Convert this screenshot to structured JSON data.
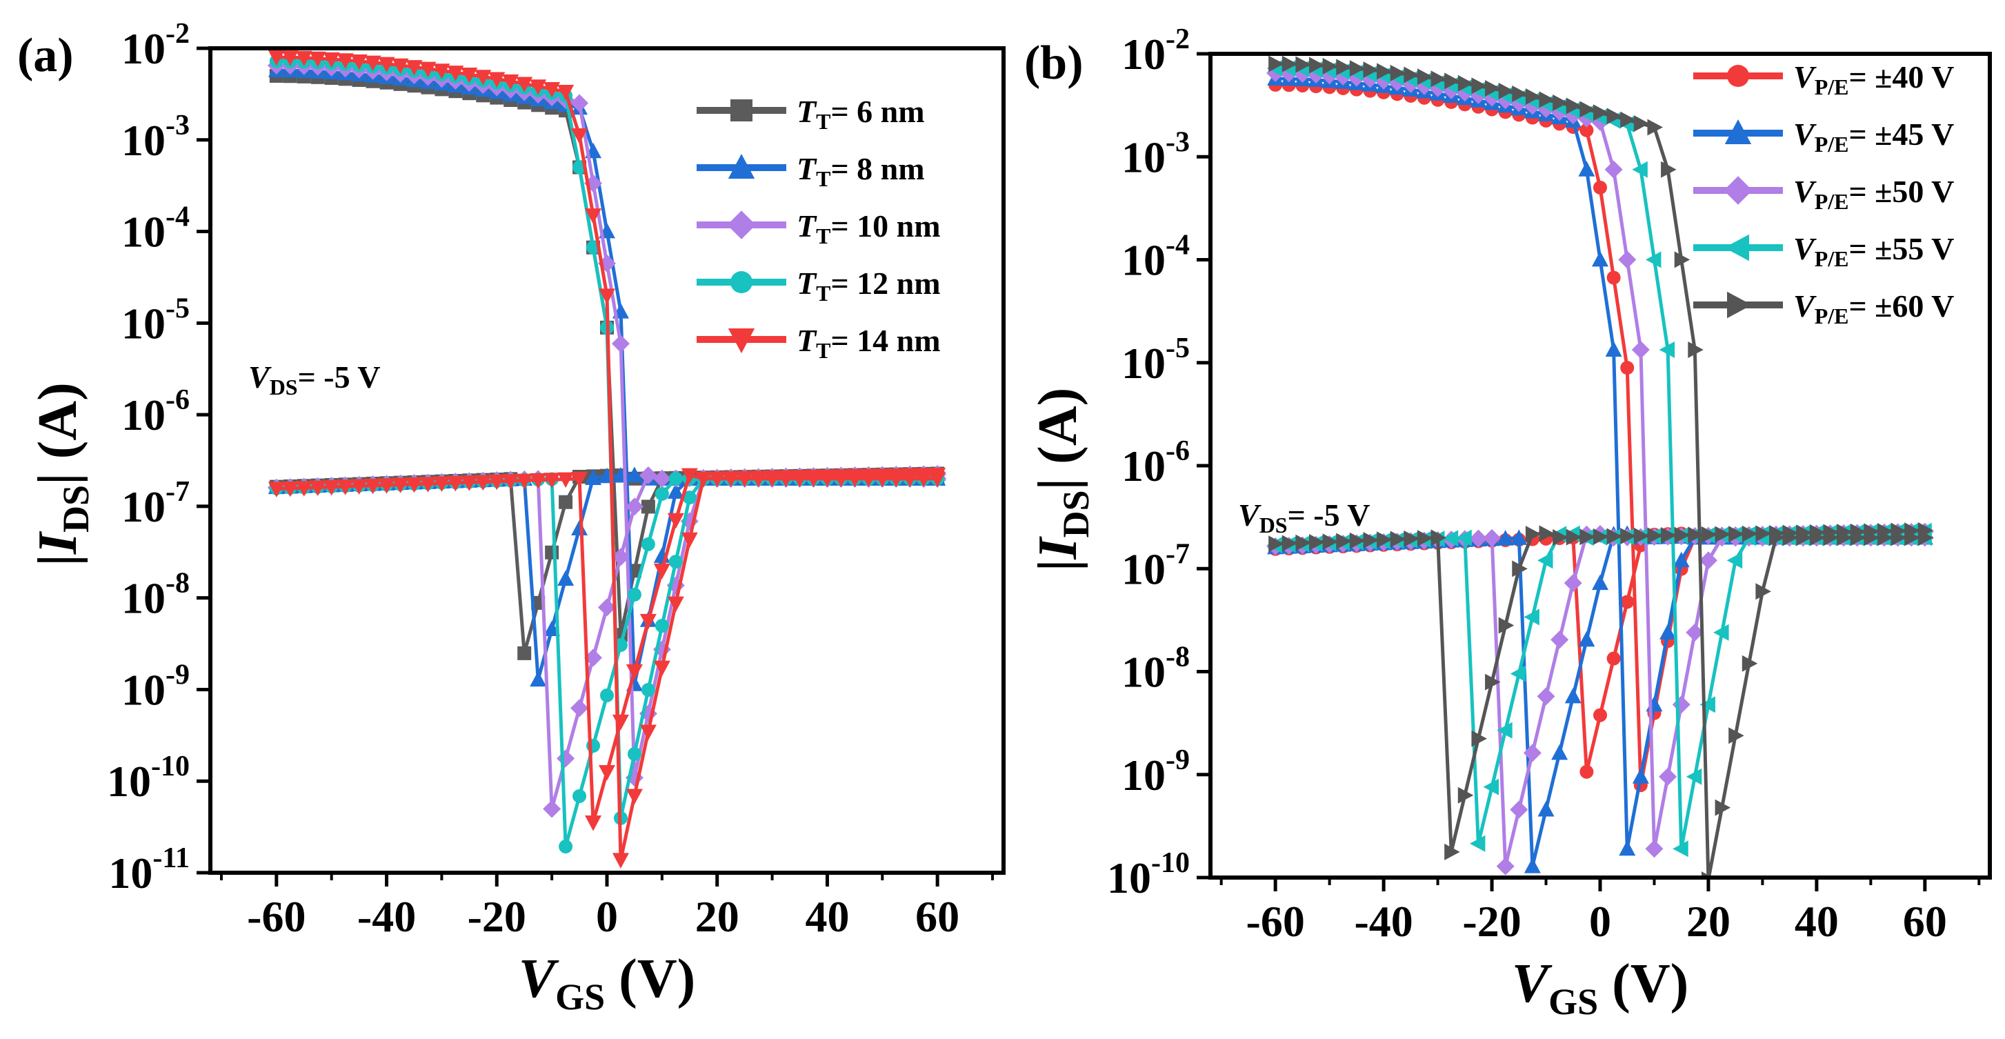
{
  "figure": {
    "colors": {
      "gray": "#5b5b5b",
      "blue": "#1f6fd6",
      "purple": "#b07ee6",
      "cyan": "#17c2c0",
      "red": "#f23a3a",
      "darkgray": "#555555"
    },
    "panels": [
      {
        "id": "a",
        "label": "(a)",
        "annotation": {
          "main": "V",
          "sub": "DS",
          "rest": "= -5 V"
        },
        "ylabel": {
          "pre": "|",
          "main": "I",
          "sub": "DS",
          "post": "| (A)"
        },
        "xlabel": {
          "main": "V",
          "sub": "GS",
          "post": " (V)"
        },
        "legend": [
          {
            "main": "T",
            "sub": "T",
            "rest": "= 6 nm"
          },
          {
            "main": "T",
            "sub": "T",
            "rest": "= 8 nm"
          },
          {
            "main": "T",
            "sub": "T",
            "rest": "= 10 nm"
          },
          {
            "main": "T",
            "sub": "T",
            "rest": "= 12 nm"
          },
          {
            "main": "T",
            "sub": "T",
            "rest": "= 14 nm"
          }
        ]
      },
      {
        "id": "b",
        "label": "(b)",
        "annotation": {
          "main": "V",
          "sub": "DS",
          "rest": "= -5 V"
        },
        "ylabel": {
          "pre": "|",
          "main": "I",
          "sub": "DS",
          "post": "| (A)"
        },
        "xlabel": {
          "main": "V",
          "sub": "GS",
          "post": " (V)"
        },
        "legend": [
          {
            "main": "V",
            "sub": "P/E",
            "rest": "= ±40 V"
          },
          {
            "main": "V",
            "sub": "P/E",
            "rest": "= ±45 V"
          },
          {
            "main": "V",
            "sub": "P/E",
            "rest": "= ±50 V"
          },
          {
            "main": "V",
            "sub": "P/E",
            "rest": "= ±55 V"
          },
          {
            "main": "V",
            "sub": "P/E",
            "rest": "= ±60 V"
          }
        ]
      }
    ]
  },
  "chart_data": [
    {
      "type": "line",
      "panel": "(a)",
      "xlabel": "VGS (V)",
      "ylabel": "|IDS| (A)",
      "yscale": "log",
      "xlim": [
        -72,
        72
      ],
      "ylim_exp": [
        -11,
        -2
      ],
      "xticks": [
        -60,
        -40,
        -20,
        0,
        20,
        40,
        60
      ],
      "yticks": [
        {
          "base": "10",
          "exp": "-11",
          "value": -11
        },
        {
          "base": "10",
          "exp": "-10",
          "value": -10
        },
        {
          "base": "10",
          "exp": "-9",
          "value": -9
        },
        {
          "base": "10",
          "exp": "-8",
          "value": -8
        },
        {
          "base": "10",
          "exp": "-7",
          "value": -7
        },
        {
          "base": "10",
          "exp": "-6",
          "value": -6
        },
        {
          "base": "10",
          "exp": "-5",
          "value": -5
        },
        {
          "base": "10",
          "exp": "-4",
          "value": -4
        },
        {
          "base": "10",
          "exp": "-3",
          "value": -3
        },
        {
          "base": "10",
          "exp": "-2",
          "value": -2
        }
      ],
      "series": [
        {
          "name": "TT= 6 nm",
          "color": "#5b5b5b",
          "marker": "square",
          "vth_forward": -16,
          "vth_reverse": -1,
          "min_current": 1.5e-09
        },
        {
          "name": "TT= 8 nm",
          "color": "#1f6fd6",
          "marker": "triangle-up",
          "vth_forward": -14,
          "vth_reverse": 2,
          "min_current": 6e-10
        },
        {
          "name": "TT= 10 nm",
          "color": "#b07ee6",
          "marker": "diamond",
          "vth_forward": -11,
          "vth_reverse": 1,
          "min_current": 3e-11
        },
        {
          "name": "TT= 12 nm",
          "color": "#17c2c0",
          "marker": "circle",
          "vth_forward": -8,
          "vth_reverse": -1,
          "min_current": 1.5e-11
        },
        {
          "name": "TT= 14 nm",
          "color": "#f23a3a",
          "marker": "triangle-down",
          "vth_forward": -5,
          "vth_reverse": 0,
          "min_current": 1e-11
        }
      ],
      "sweep": {
        "vgs_start": -60,
        "vgs_end": 60,
        "on_current": 0.005,
        "off_plateau": 2e-07
      }
    },
    {
      "type": "line",
      "panel": "(b)",
      "xlabel": "VGS (V)",
      "ylabel": "|IDS| (A)",
      "yscale": "log",
      "xlim": [
        -72,
        72
      ],
      "ylim_exp": [
        -10,
        -2
      ],
      "xticks": [
        -60,
        -40,
        -20,
        0,
        20,
        40,
        60
      ],
      "yticks": [
        {
          "base": "10",
          "exp": "-10",
          "value": -10
        },
        {
          "base": "10",
          "exp": "-9",
          "value": -9
        },
        {
          "base": "10",
          "exp": "-8",
          "value": -8
        },
        {
          "base": "10",
          "exp": "-7",
          "value": -7
        },
        {
          "base": "10",
          "exp": "-6",
          "value": -6
        },
        {
          "base": "10",
          "exp": "-5",
          "value": -5
        },
        {
          "base": "10",
          "exp": "-4",
          "value": -4
        },
        {
          "base": "10",
          "exp": "-3",
          "value": -3
        },
        {
          "base": "10",
          "exp": "-2",
          "value": -2
        }
      ],
      "series": [
        {
          "name": "VP/E= ±40 V",
          "color": "#f23a3a",
          "marker": "circle",
          "vth_forward": -5,
          "vth_reverse": 4,
          "min_current": 3e-10
        },
        {
          "name": "VP/E= ±45 V",
          "color": "#1f6fd6",
          "marker": "triangle-up",
          "vth_forward": -13,
          "vth_reverse": 2,
          "min_current": 1e-10
        },
        {
          "name": "VP/E= ±50 V",
          "color": "#b07ee6",
          "marker": "diamond",
          "vth_forward": -18,
          "vth_reverse": 7,
          "min_current": 1e-10
        },
        {
          "name": "VP/E= ±55 V",
          "color": "#17c2c0",
          "marker": "triangle-left",
          "vth_forward": -24,
          "vth_reverse": 12,
          "min_current": 1e-10
        },
        {
          "name": "VP/E= ±60 V",
          "color": "#555555",
          "marker": "triangle-right",
          "vth_forward": -30,
          "vth_reverse": 17,
          "min_current": 5e-11
        }
      ],
      "sweep": {
        "vgs_start": -60,
        "vgs_end": 60,
        "on_current": 0.005,
        "off_plateau": 2e-07
      }
    }
  ]
}
